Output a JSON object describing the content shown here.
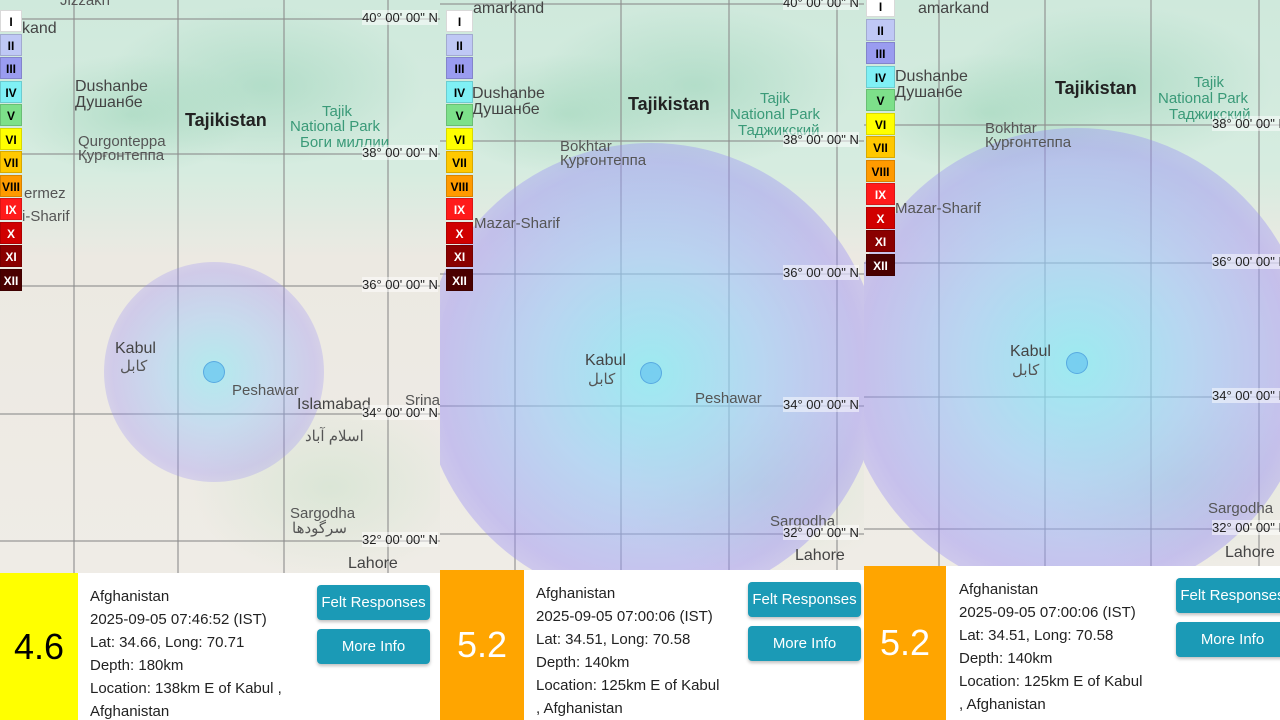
{
  "legend": {
    "levels": [
      "I",
      "II",
      "III",
      "IV",
      "V",
      "VI",
      "VII",
      "VIII",
      "IX",
      "X",
      "XI",
      "XII"
    ],
    "colors": [
      "#ffffff",
      "#bfc8f5",
      "#9a9cf0",
      "#7ff0f5",
      "#7de08a",
      "#ffff00",
      "#ffc800",
      "#ff9a00",
      "#ff1a1a",
      "#d00000",
      "#8a0000",
      "#4a0000"
    ],
    "text_colors": [
      "#000",
      "#000",
      "#000",
      "#000",
      "#000",
      "#000",
      "#000",
      "#000",
      "#fff",
      "#fff",
      "#fff",
      "#fff"
    ]
  },
  "grid_labels": [
    "40° 00' 00\" N",
    "38° 00' 00\" N",
    "36° 00' 00\" N",
    "34° 00' 00\" N",
    "32° 00' 00\" N"
  ],
  "places": {
    "samarkand_1": "kand",
    "samarkand_2": "amarkand",
    "dushanbe": "Dushanbe",
    "dushanbe_cyr": "Душанбе",
    "tajikistan": "Tajikistan",
    "tajik": "Tajik",
    "national_park": "National Park",
    "park_cyr": "Боги миллии",
    "park_cyr2": "Таджикский",
    "qurgonteppa": "Qurgonteppa",
    "qurgonteppa_cyr": "Қурғонтеппа",
    "bokhtar": "Bokhtar",
    "mazar": "Mazar-Sharif",
    "mazar_partial": "i-Sharif",
    "termez": "ermez",
    "kabul": "Kabul",
    "kabul_ar": "کابل",
    "islamabad": "Islamabad",
    "islamabad_ar": "اسلام آباد",
    "srinagar": "Srinag",
    "sargodha": "Sargodha",
    "sargodha_ar": "سرگودھا",
    "lahore": "Lahore",
    "peshawar": "Peshawar",
    "jizzakh": "Jizzakh"
  },
  "panels": [
    {
      "magnitude": "4.6",
      "mag_color": "#ffff00",
      "mag_text_color": "#000000",
      "region": "Afghanistan",
      "datetime": "2025-09-05 07:46:52 (IST)",
      "latlong": "Lat: 34.66, Long: 70.71",
      "depth": "Depth: 180km",
      "location1": "Location: 138km E of Kabul ,",
      "location2": "Afghanistan",
      "felt_label": "Felt Responses",
      "more_label": "More Info"
    },
    {
      "magnitude": "5.2",
      "mag_color": "#ffa500",
      "mag_text_color": "#ffffff",
      "region": "Afghanistan",
      "datetime": "2025-09-05 07:00:06 (IST)",
      "latlong": "Lat: 34.51, Long: 70.58",
      "depth": "Depth: 140km",
      "location1": "Location: 125km E of Kabul",
      "location2": ", Afghanistan",
      "felt_label": "Felt Responses",
      "more_label": "More Info"
    },
    {
      "magnitude": "5.2",
      "mag_color": "#ffa500",
      "mag_text_color": "#ffffff",
      "region": "Afghanistan",
      "datetime": "2025-09-05 07:00:06 (IST)",
      "latlong": "Lat: 34.51, Long: 70.58",
      "depth": "Depth: 140km",
      "location1": "Location: 125km E of Kabul",
      "location2": ", Afghanistan",
      "felt_label": "Felt Responses",
      "more_label": "More Info"
    }
  ]
}
